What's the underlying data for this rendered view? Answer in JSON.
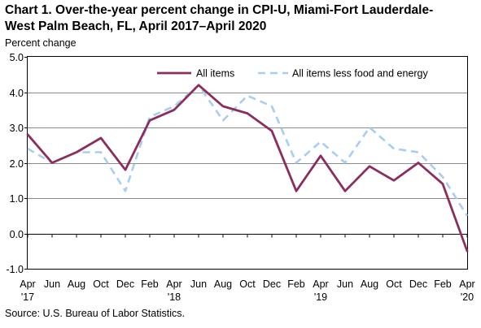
{
  "chart_data": {
    "type": "line",
    "title_line1": "Chart 1. Over-the-year percent change in CPI-U, Miami-Fort Lauderdale-",
    "title_line2": "West Palm Beach, FL, April 2017–April 2020",
    "ylabel": "Percent change",
    "source": "Source: U.S. Bureau of Labor Statistics.",
    "ylim": [
      -1.0,
      5.0
    ],
    "yticks": [
      "-1.0",
      "0.0",
      "1.0",
      "2.0",
      "3.0",
      "4.0",
      "5.0"
    ],
    "grid": true,
    "legend_position": "top-right",
    "x": [
      "Apr 2017",
      "Jun 2017",
      "Aug 2017",
      "Oct 2017",
      "Dec 2017",
      "Feb 2018",
      "Apr 2018",
      "Jun 2018",
      "Aug 2018",
      "Oct 2018",
      "Dec 2018",
      "Feb 2019",
      "Apr 2019",
      "Jun 2019",
      "Aug 2019",
      "Oct 2019",
      "Dec 2019",
      "Feb 2020",
      "Apr 2020"
    ],
    "xtick_labels": [
      {
        "month": "Apr",
        "year": "'17"
      },
      {
        "month": "Jun",
        "year": ""
      },
      {
        "month": "Aug",
        "year": ""
      },
      {
        "month": "Oct",
        "year": ""
      },
      {
        "month": "Dec",
        "year": ""
      },
      {
        "month": "Feb",
        "year": ""
      },
      {
        "month": "Apr",
        "year": "'18"
      },
      {
        "month": "Jun",
        "year": ""
      },
      {
        "month": "Aug",
        "year": ""
      },
      {
        "month": "Oct",
        "year": ""
      },
      {
        "month": "Dec",
        "year": ""
      },
      {
        "month": "Feb",
        "year": ""
      },
      {
        "month": "Apr",
        "year": "'19"
      },
      {
        "month": "Jun",
        "year": ""
      },
      {
        "month": "Aug",
        "year": ""
      },
      {
        "month": "Oct",
        "year": ""
      },
      {
        "month": "Dec",
        "year": ""
      },
      {
        "month": "Feb",
        "year": ""
      },
      {
        "month": "Apr",
        "year": "'20"
      }
    ],
    "series": [
      {
        "name": "All items",
        "color": "#8b2e5e",
        "style": "solid",
        "values": [
          2.8,
          2.0,
          2.3,
          2.7,
          1.8,
          3.2,
          3.5,
          4.2,
          3.6,
          3.4,
          2.9,
          1.2,
          2.2,
          1.2,
          1.9,
          1.5,
          2.0,
          1.4,
          -0.5
        ]
      },
      {
        "name": "All items less food and energy",
        "color": "#a9cdf0",
        "style": "dashed",
        "values": [
          2.4,
          2.0,
          2.3,
          2.3,
          1.2,
          3.3,
          3.6,
          4.2,
          3.2,
          3.9,
          3.6,
          2.0,
          2.6,
          2.0,
          3.0,
          2.4,
          2.3,
          1.6,
          0.5
        ]
      }
    ]
  }
}
